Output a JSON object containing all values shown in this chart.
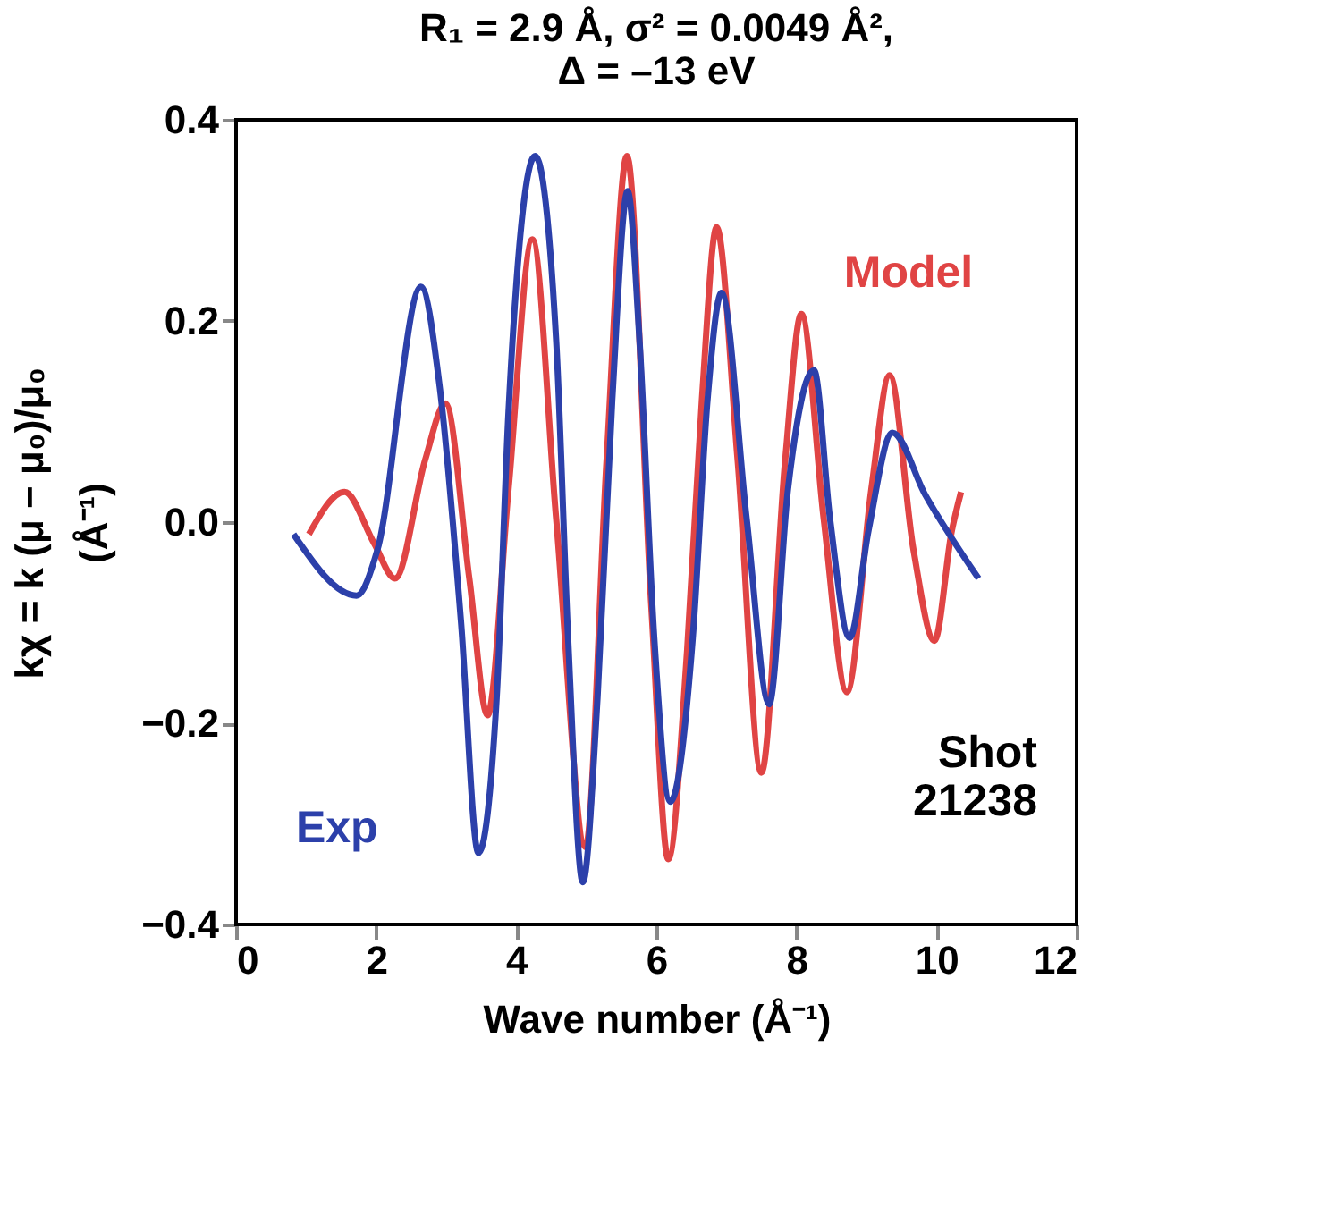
{
  "chart_data": {
    "type": "line",
    "title": "R₁ = 2.9 Å, σ² = 0.0049 Å²,\nΔ = –13 eV",
    "xlabel": "Wave number (Å⁻¹)",
    "ylabel": "kχ = k (μ − μ₀)/μ₀\n(Å⁻¹)",
    "xlim": [
      0,
      12
    ],
    "xticks": [
      0,
      2,
      4,
      6,
      8,
      10,
      12
    ],
    "ylim": [
      -0.4,
      0.4
    ],
    "yticks": [
      {
        "value": -0.4,
        "label": "−0.4"
      },
      {
        "value": -0.2,
        "label": "−0.2"
      },
      {
        "value": 0,
        "label": "0.0"
      },
      {
        "value": 0.2,
        "label": "0.2"
      },
      {
        "value": 0.4,
        "label": "0.4"
      }
    ],
    "grid": false,
    "marker": "none",
    "line_style": "solid",
    "annotations": [
      "Shot\n21238"
    ],
    "series": [
      {
        "name": "Model",
        "color": "#e04444",
        "x": [
          1.04,
          1.55,
          1.97,
          2.27,
          2.7,
          2.99,
          3.33,
          3.59,
          3.89,
          4.23,
          4.57,
          4.99,
          5.29,
          5.58,
          5.93,
          6.17,
          6.44,
          6.65,
          6.86,
          7.16,
          7.5,
          7.84,
          8.07,
          8.39,
          8.72,
          9.07,
          9.33,
          9.67,
          9.97,
          10.22,
          10.35
        ],
        "values": [
          -0.012,
          0.03,
          -0.021,
          -0.056,
          0.062,
          0.118,
          -0.056,
          -0.192,
          0.033,
          0.281,
          0.003,
          -0.323,
          0.062,
          0.364,
          -0.086,
          -0.335,
          -0.127,
          0.121,
          0.293,
          0.062,
          -0.249,
          0.062,
          0.207,
          0.003,
          -0.169,
          0.033,
          0.146,
          -0.027,
          -0.118,
          -0.008,
          0.03
        ]
      },
      {
        "name": "Exp",
        "color": "#2c40aa",
        "x": [
          0.82,
          1.72,
          2.02,
          2.64,
          2.91,
          3.21,
          3.46,
          3.72,
          3.89,
          4.27,
          4.57,
          4.74,
          4.95,
          5.16,
          5.37,
          5.59,
          5.76,
          5.97,
          6.2,
          6.52,
          6.73,
          6.93,
          7.29,
          7.61,
          7.88,
          8.25,
          8.48,
          8.76,
          9.03,
          9.37,
          9.84,
          10.6
        ],
        "values": [
          -0.012,
          -0.073,
          -0.027,
          0.234,
          0.133,
          -0.098,
          -0.329,
          -0.175,
          0.11,
          0.364,
          0.18,
          -0.115,
          -0.358,
          -0.175,
          0.121,
          0.329,
          0.18,
          -0.115,
          -0.278,
          -0.115,
          0.121,
          0.228,
          0.003,
          -0.181,
          0.033,
          0.151,
          0.003,
          -0.115,
          -0.008,
          0.089,
          0.027,
          -0.056
        ]
      }
    ]
  }
}
